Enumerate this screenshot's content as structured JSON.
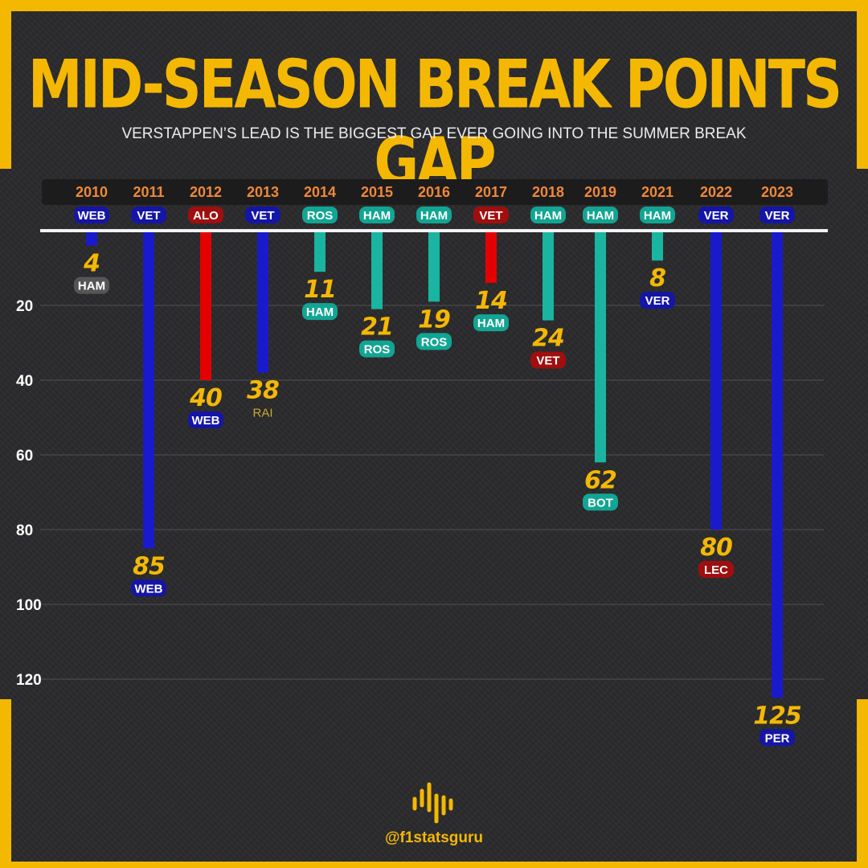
{
  "title": "MID-SEASON BREAK POINTS GAP",
  "subtitle": "VERSTAPPEN’S LEAD IS THE BIGGEST GAP EVER GOING INTO THE SUMMER BREAK",
  "brand": {
    "handle": "@f1statsguru",
    "logo_icon": "sound-wave-logo-icon"
  },
  "colors": {
    "accent": "#f5b800",
    "year_label": "#f0883a",
    "WEB": "#1a1acd",
    "VET": "#1a1acd",
    "VER": "#1a1acd",
    "PER": "#1a1acd",
    "ALO": "#e20000",
    "HAM": "#19b5a0",
    "ROS": "#19b5a0",
    "BOT": "#19b5a0",
    "RAI": "#ccaa33",
    "tag_blue": "#1515a6",
    "tag_red": "#a00e0e",
    "tag_teal": "#12a593",
    "tag_gray": "#555555"
  },
  "chart_data": {
    "type": "bar",
    "orientation": "downward",
    "categories": [
      "2010",
      "2011",
      "2012",
      "2013",
      "2014",
      "2015",
      "2016",
      "2017",
      "2018",
      "2019",
      "2021",
      "2022",
      "2023"
    ],
    "leaders": [
      "WEB",
      "VET",
      "ALO",
      "VET",
      "ROS",
      "HAM",
      "HAM",
      "VET",
      "HAM",
      "HAM",
      "HAM",
      "VER",
      "VER"
    ],
    "values": [
      4,
      85,
      40,
      38,
      11,
      21,
      19,
      14,
      24,
      62,
      8,
      80,
      125
    ],
    "runners_up": [
      "HAM",
      "WEB",
      "WEB",
      "RAI",
      "HAM",
      "ROS",
      "ROS",
      "HAM",
      "VET",
      "BOT",
      "VER",
      "LEC",
      "PER"
    ],
    "runner_up_tag_colors": [
      "gray",
      "blue",
      "blue",
      "none",
      "teal",
      "teal",
      "teal",
      "teal",
      "red",
      "teal",
      "blue",
      "red",
      "blue"
    ],
    "bar_colors": [
      "#1a1acd",
      "#1a1acd",
      "#e20000",
      "#1a1acd",
      "#19b5a0",
      "#19b5a0",
      "#19b5a0",
      "#e20000",
      "#19b5a0",
      "#19b5a0",
      "#19b5a0",
      "#1a1acd",
      "#1a1acd"
    ],
    "leader_tag_colors": [
      "blue",
      "blue",
      "red",
      "blue",
      "teal",
      "teal",
      "teal",
      "red",
      "teal",
      "teal",
      "teal",
      "blue",
      "blue"
    ],
    "y_ticks": [
      20,
      40,
      60,
      80,
      100,
      120
    ],
    "ylim": [
      0,
      125
    ],
    "grid": true
  }
}
